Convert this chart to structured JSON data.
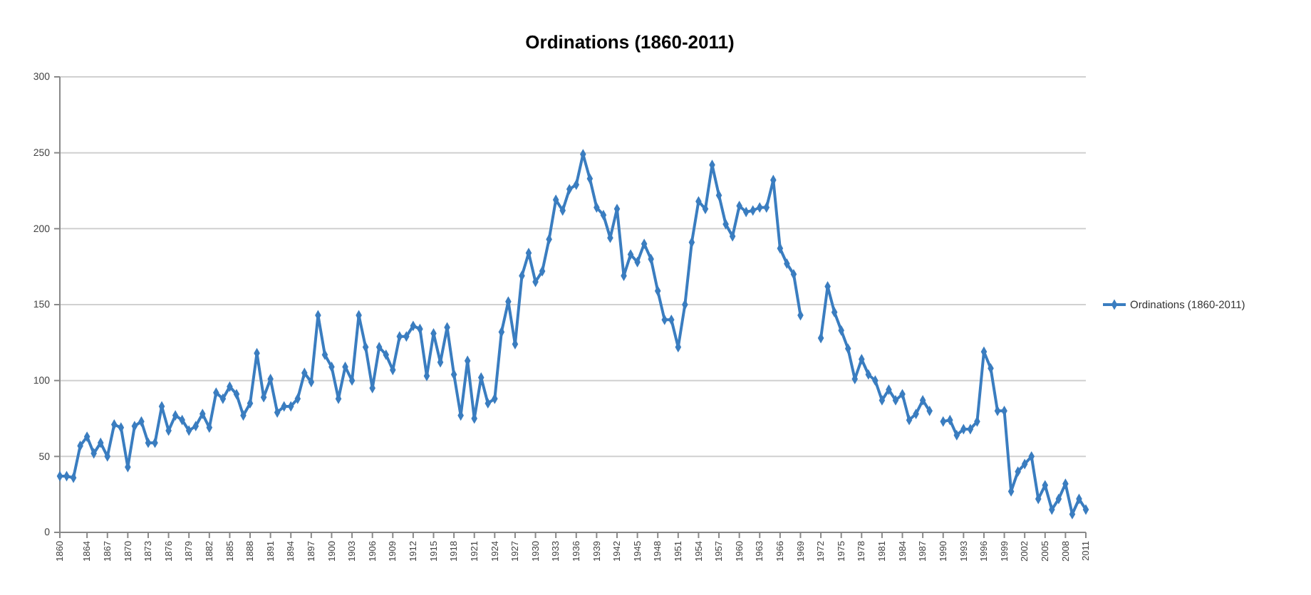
{
  "chart_data": {
    "type": "line",
    "title": "Ordinations (1860-2011)",
    "x": [
      1860,
      1861,
      1862,
      1863,
      1864,
      1865,
      1866,
      1867,
      1868,
      1869,
      1870,
      1871,
      1872,
      1873,
      1874,
      1875,
      1876,
      1877,
      1878,
      1879,
      1880,
      1881,
      1882,
      1883,
      1884,
      1885,
      1886,
      1887,
      1888,
      1889,
      1890,
      1891,
      1892,
      1893,
      1894,
      1895,
      1896,
      1897,
      1898,
      1899,
      1900,
      1901,
      1902,
      1903,
      1904,
      1905,
      1906,
      1907,
      1908,
      1909,
      1910,
      1911,
      1912,
      1913,
      1914,
      1915,
      1916,
      1917,
      1918,
      1919,
      1920,
      1921,
      1922,
      1923,
      1924,
      1925,
      1926,
      1927,
      1928,
      1929,
      1930,
      1931,
      1932,
      1933,
      1934,
      1935,
      1936,
      1937,
      1938,
      1939,
      1940,
      1941,
      1942,
      1943,
      1944,
      1945,
      1946,
      1947,
      1948,
      1949,
      1950,
      1951,
      1952,
      1953,
      1954,
      1955,
      1956,
      1957,
      1958,
      1959,
      1960,
      1961,
      1962,
      1963,
      1964,
      1965,
      1966,
      1967,
      1968,
      1969,
      1970,
      1971,
      1972,
      1973,
      1974,
      1975,
      1976,
      1977,
      1978,
      1979,
      1980,
      1981,
      1982,
      1983,
      1984,
      1985,
      1986,
      1987,
      1988,
      1989,
      1990,
      1991,
      1992,
      1993,
      1994,
      1995,
      1996,
      1997,
      1998,
      1999,
      2000,
      2001,
      2002,
      2003,
      2004,
      2005,
      2006,
      2007,
      2008,
      2009,
      2010,
      2011
    ],
    "series": [
      {
        "name": "Ordinations (1860-2011)",
        "color": "#3a7dc0",
        "values": [
          37,
          37,
          36,
          57,
          63,
          52,
          59,
          50,
          71,
          69,
          43,
          70,
          73,
          59,
          59,
          83,
          67,
          77,
          74,
          67,
          70,
          78,
          69,
          92,
          88,
          96,
          91,
          77,
          85,
          118,
          89,
          101,
          79,
          83,
          83,
          88,
          105,
          99,
          143,
          117,
          109,
          88,
          109,
          100,
          143,
          122,
          95,
          122,
          117,
          107,
          129,
          129,
          136,
          134,
          103,
          131,
          112,
          135,
          104,
          77,
          113,
          75,
          102,
          85,
          88,
          132,
          152,
          124,
          169,
          184,
          165,
          172,
          193,
          219,
          212,
          226,
          229,
          249,
          233,
          214,
          209,
          194,
          213,
          169,
          183,
          178,
          190,
          180,
          159,
          140,
          140,
          122,
          150,
          191,
          218,
          213,
          242,
          222,
          203,
          195,
          215,
          211,
          212,
          214,
          214,
          232,
          187,
          177,
          170,
          143,
          null,
          null,
          128,
          162,
          145,
          133,
          121,
          101,
          114,
          104,
          100,
          87,
          94,
          87,
          91,
          74,
          78,
          87,
          80,
          null,
          73,
          74,
          64,
          68,
          68,
          73,
          119,
          108,
          80,
          80,
          27,
          40,
          45,
          50,
          22,
          31,
          15,
          22,
          32,
          12,
          22,
          15
        ]
      }
    ],
    "xlim": [
      1860,
      2011
    ],
    "xticks": [
      1860,
      1864,
      1867,
      1870,
      1873,
      1876,
      1879,
      1882,
      1885,
      1888,
      1891,
      1894,
      1897,
      1900,
      1903,
      1906,
      1909,
      1912,
      1915,
      1918,
      1921,
      1924,
      1927,
      1930,
      1933,
      1936,
      1939,
      1942,
      1945,
      1948,
      1951,
      1954,
      1957,
      1960,
      1963,
      1966,
      1969,
      1972,
      1975,
      1978,
      1981,
      1984,
      1987,
      1990,
      1993,
      1996,
      1999,
      2002,
      2005,
      2008,
      2011
    ],
    "ylim": [
      0,
      300
    ],
    "yticks": [
      0,
      50,
      100,
      150,
      200,
      250,
      300
    ],
    "grid": "y",
    "legend": "right",
    "marker": "diamond",
    "line_style": "solid"
  }
}
